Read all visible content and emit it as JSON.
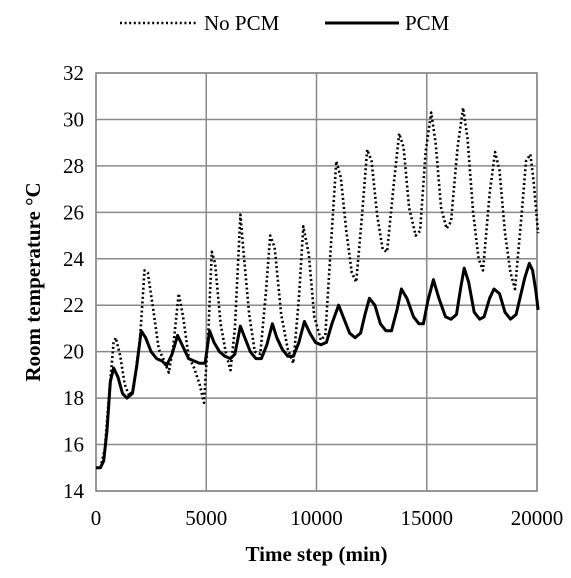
{
  "chart_data": {
    "type": "line",
    "xlabel": "Time step (min)",
    "ylabel": "Room temperature °C",
    "xlim": [
      0,
      20000
    ],
    "ylim": [
      14,
      32
    ],
    "xticks": [
      0,
      5000,
      10000,
      15000,
      20000
    ],
    "yticks": [
      14,
      16,
      18,
      20,
      22,
      24,
      26,
      28,
      30,
      32
    ],
    "grid": true,
    "legend_position": "top",
    "series": [
      {
        "name": "No PCM",
        "style": "dotted",
        "color": "#000000",
        "points": [
          [
            0,
            15.0
          ],
          [
            200,
            15.0
          ],
          [
            400,
            15.8
          ],
          [
            600,
            18.2
          ],
          [
            800,
            20.4
          ],
          [
            900,
            20.6
          ],
          [
            1100,
            19.8
          ],
          [
            1300,
            18.6
          ],
          [
            1500,
            18.1
          ],
          [
            1700,
            18.4
          ],
          [
            2000,
            20.6
          ],
          [
            2200,
            23.5
          ],
          [
            2350,
            23.4
          ],
          [
            2600,
            21.8
          ],
          [
            2850,
            20.1
          ],
          [
            3100,
            19.6
          ],
          [
            3300,
            19.1
          ],
          [
            3500,
            20.2
          ],
          [
            3750,
            22.5
          ],
          [
            3950,
            21.5
          ],
          [
            4200,
            19.8
          ],
          [
            4450,
            19.3
          ],
          [
            4700,
            18.6
          ],
          [
            4900,
            17.8
          ],
          [
            5100,
            21.0
          ],
          [
            5250,
            24.3
          ],
          [
            5400,
            23.8
          ],
          [
            5650,
            21.2
          ],
          [
            5900,
            19.9
          ],
          [
            6100,
            19.2
          ],
          [
            6300,
            21.0
          ],
          [
            6550,
            25.9
          ],
          [
            6700,
            24.2
          ],
          [
            6950,
            21.6
          ],
          [
            7200,
            20.0
          ],
          [
            7450,
            19.9
          ],
          [
            7700,
            22.5
          ],
          [
            7900,
            25.0
          ],
          [
            8100,
            24.5
          ],
          [
            8400,
            21.6
          ],
          [
            8700,
            20.1
          ],
          [
            8950,
            19.5
          ],
          [
            9200,
            22.3
          ],
          [
            9400,
            25.4
          ],
          [
            9650,
            24.2
          ],
          [
            9900,
            21.5
          ],
          [
            10200,
            20.5
          ],
          [
            10400,
            20.7
          ],
          [
            10650,
            24.5
          ],
          [
            10900,
            28.2
          ],
          [
            11100,
            27.5
          ],
          [
            11350,
            25.2
          ],
          [
            11600,
            23.4
          ],
          [
            11800,
            23.0
          ],
          [
            12050,
            25.7
          ],
          [
            12300,
            28.7
          ],
          [
            12500,
            28.2
          ],
          [
            12750,
            25.9
          ],
          [
            13000,
            24.4
          ],
          [
            13200,
            24.3
          ],
          [
            13500,
            27.2
          ],
          [
            13750,
            29.4
          ],
          [
            13950,
            28.8
          ],
          [
            14200,
            26.2
          ],
          [
            14500,
            25.0
          ],
          [
            14700,
            25.2
          ],
          [
            14950,
            28.6
          ],
          [
            15200,
            30.3
          ],
          [
            15400,
            29.0
          ],
          [
            15650,
            26.2
          ],
          [
            15900,
            25.3
          ],
          [
            16100,
            25.6
          ],
          [
            16400,
            28.8
          ],
          [
            16650,
            30.5
          ],
          [
            16850,
            29.2
          ],
          [
            17100,
            26.0
          ],
          [
            17350,
            24.0
          ],
          [
            17550,
            23.5
          ],
          [
            17850,
            26.8
          ],
          [
            18100,
            28.6
          ],
          [
            18300,
            27.8
          ],
          [
            18550,
            25.1
          ],
          [
            18800,
            23.4
          ],
          [
            19000,
            22.7
          ],
          [
            19300,
            25.9
          ],
          [
            19500,
            28.2
          ],
          [
            19700,
            28.5
          ],
          [
            19850,
            27.3
          ],
          [
            20050,
            25.1
          ]
        ]
      },
      {
        "name": "PCM",
        "style": "solid",
        "color": "#000000",
        "points": [
          [
            0,
            15.0
          ],
          [
            200,
            15.0
          ],
          [
            350,
            15.3
          ],
          [
            500,
            16.6
          ],
          [
            650,
            18.7
          ],
          [
            800,
            19.3
          ],
          [
            1000,
            18.9
          ],
          [
            1200,
            18.2
          ],
          [
            1400,
            18.0
          ],
          [
            1650,
            18.2
          ],
          [
            1850,
            19.4
          ],
          [
            2050,
            20.9
          ],
          [
            2250,
            20.6
          ],
          [
            2500,
            20.0
          ],
          [
            2750,
            19.7
          ],
          [
            3000,
            19.6
          ],
          [
            3200,
            19.4
          ],
          [
            3450,
            19.9
          ],
          [
            3700,
            20.7
          ],
          [
            3950,
            20.2
          ],
          [
            4200,
            19.7
          ],
          [
            4450,
            19.6
          ],
          [
            4700,
            19.5
          ],
          [
            4950,
            19.5
          ],
          [
            5150,
            20.9
          ],
          [
            5350,
            20.4
          ],
          [
            5600,
            20.0
          ],
          [
            5850,
            19.8
          ],
          [
            6100,
            19.7
          ],
          [
            6300,
            19.9
          ],
          [
            6550,
            21.1
          ],
          [
            6750,
            20.6
          ],
          [
            7000,
            20.0
          ],
          [
            7250,
            19.7
          ],
          [
            7500,
            19.7
          ],
          [
            7750,
            20.3
          ],
          [
            8000,
            21.2
          ],
          [
            8200,
            20.6
          ],
          [
            8450,
            20.1
          ],
          [
            8700,
            19.8
          ],
          [
            8950,
            19.8
          ],
          [
            9200,
            20.4
          ],
          [
            9450,
            21.3
          ],
          [
            9700,
            20.8
          ],
          [
            9950,
            20.4
          ],
          [
            10200,
            20.3
          ],
          [
            10450,
            20.4
          ],
          [
            10700,
            21.2
          ],
          [
            11000,
            22.0
          ],
          [
            11250,
            21.4
          ],
          [
            11500,
            20.8
          ],
          [
            11750,
            20.6
          ],
          [
            12000,
            20.8
          ],
          [
            12200,
            21.6
          ],
          [
            12400,
            22.3
          ],
          [
            12650,
            22.0
          ],
          [
            12900,
            21.2
          ],
          [
            13150,
            20.9
          ],
          [
            13400,
            20.9
          ],
          [
            13650,
            21.8
          ],
          [
            13850,
            22.7
          ],
          [
            14100,
            22.3
          ],
          [
            14400,
            21.5
          ],
          [
            14650,
            21.2
          ],
          [
            14850,
            21.2
          ],
          [
            15050,
            22.2
          ],
          [
            15300,
            23.1
          ],
          [
            15550,
            22.3
          ],
          [
            15850,
            21.5
          ],
          [
            16100,
            21.4
          ],
          [
            16350,
            21.6
          ],
          [
            16550,
            22.8
          ],
          [
            16700,
            23.6
          ],
          [
            16900,
            23.0
          ],
          [
            17150,
            21.7
          ],
          [
            17400,
            21.4
          ],
          [
            17600,
            21.5
          ],
          [
            17850,
            22.3
          ],
          [
            18050,
            22.7
          ],
          [
            18300,
            22.5
          ],
          [
            18550,
            21.7
          ],
          [
            18800,
            21.4
          ],
          [
            19050,
            21.6
          ],
          [
            19250,
            22.4
          ],
          [
            19450,
            23.2
          ],
          [
            19650,
            23.8
          ],
          [
            19800,
            23.5
          ],
          [
            19950,
            22.6
          ],
          [
            20050,
            21.8
          ]
        ]
      }
    ]
  }
}
